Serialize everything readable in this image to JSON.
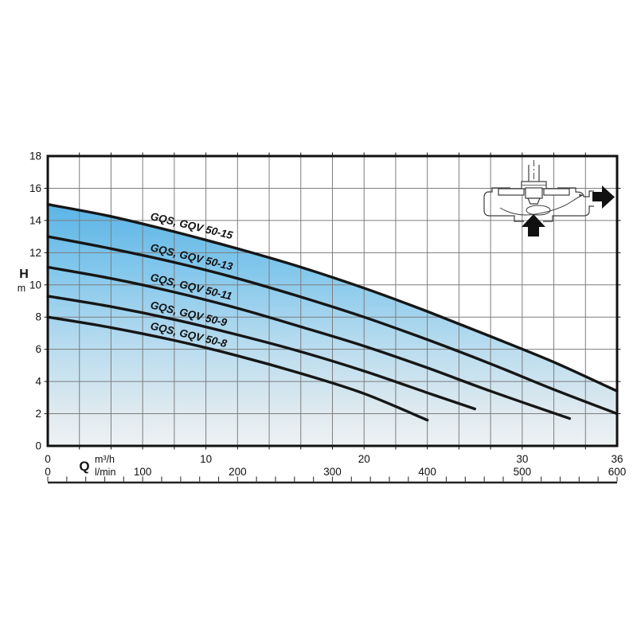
{
  "y_axis": {
    "label": "H",
    "unit": "m",
    "ticks": [
      0,
      2,
      4,
      6,
      8,
      10,
      12,
      14,
      16,
      18
    ],
    "min": 0,
    "max": 18
  },
  "x_axis_primary": {
    "unit": "m³/h",
    "ticks": [
      0,
      10,
      20,
      30,
      36
    ],
    "min": 0,
    "max": 36
  },
  "x_axis_secondary": {
    "label": "Q",
    "unit": "l/min",
    "ticks": [
      0,
      100,
      200,
      300,
      400,
      500,
      600
    ],
    "min": 0,
    "max": 600
  },
  "ruler": {
    "min": 0,
    "max": 600,
    "tick_step": 20
  },
  "colors": {
    "curve": "#161616",
    "grid": "#7d7d7d",
    "border": "#111111",
    "text": "#111111",
    "fill_top": "#58b3e5",
    "fill_mid1": "#85c8ec",
    "fill_mid2": "#b9dcef",
    "fill_mid3": "#dde9ef",
    "fill_bottom": "#eef2f3"
  },
  "chart_data": {
    "type": "line",
    "title": "",
    "xlabel": "Q",
    "x_units": [
      "m³/h",
      "l/min"
    ],
    "ylabel": "H",
    "y_unit": "m",
    "xlim": [
      0,
      36
    ],
    "ylim": [
      0,
      18
    ],
    "grid": {
      "on": true,
      "x_step": 2,
      "y_step": 2
    },
    "legend_position": "labels-on-curves",
    "series": [
      {
        "name": "GQS, GQV 50-15",
        "points": [
          [
            0,
            15.0
          ],
          [
            4,
            14.25
          ],
          [
            8,
            13.3
          ],
          [
            12,
            12.25
          ],
          [
            16,
            11.1
          ],
          [
            20,
            9.8
          ],
          [
            24,
            8.35
          ],
          [
            28,
            6.8
          ],
          [
            32,
            5.2
          ],
          [
            36,
            3.4
          ]
        ]
      },
      {
        "name": "GQS, GQV 50-13",
        "points": [
          [
            0,
            13.0
          ],
          [
            4,
            12.25
          ],
          [
            8,
            11.4
          ],
          [
            12,
            10.4
          ],
          [
            16,
            9.25
          ],
          [
            20,
            8.0
          ],
          [
            24,
            6.6
          ],
          [
            28,
            5.1
          ],
          [
            32,
            3.5
          ],
          [
            36,
            2.0
          ]
        ]
      },
      {
        "name": "GQS, GQV 50-11",
        "points": [
          [
            0,
            11.1
          ],
          [
            4,
            10.4
          ],
          [
            8,
            9.55
          ],
          [
            12,
            8.55
          ],
          [
            16,
            7.4
          ],
          [
            20,
            6.2
          ],
          [
            24,
            4.85
          ],
          [
            28,
            3.4
          ],
          [
            33,
            1.7
          ]
        ]
      },
      {
        "name": "GQS, GQV 50-9",
        "points": [
          [
            0,
            9.3
          ],
          [
            4,
            8.65
          ],
          [
            8,
            7.85
          ],
          [
            12,
            6.9
          ],
          [
            16,
            5.85
          ],
          [
            20,
            4.65
          ],
          [
            24,
            3.3
          ],
          [
            27,
            2.3
          ]
        ]
      },
      {
        "name": "GQS, GQV 50-8",
        "points": [
          [
            0,
            8.0
          ],
          [
            4,
            7.35
          ],
          [
            8,
            6.55
          ],
          [
            12,
            5.6
          ],
          [
            16,
            4.5
          ],
          [
            20,
            3.25
          ],
          [
            24,
            1.6
          ]
        ]
      }
    ],
    "fill": {
      "under_series": "GQS, GQV 50-15"
    }
  },
  "inset_schematic": {
    "description": "pump cross-section",
    "arrows": [
      "inlet-up",
      "outlet-right"
    ]
  }
}
